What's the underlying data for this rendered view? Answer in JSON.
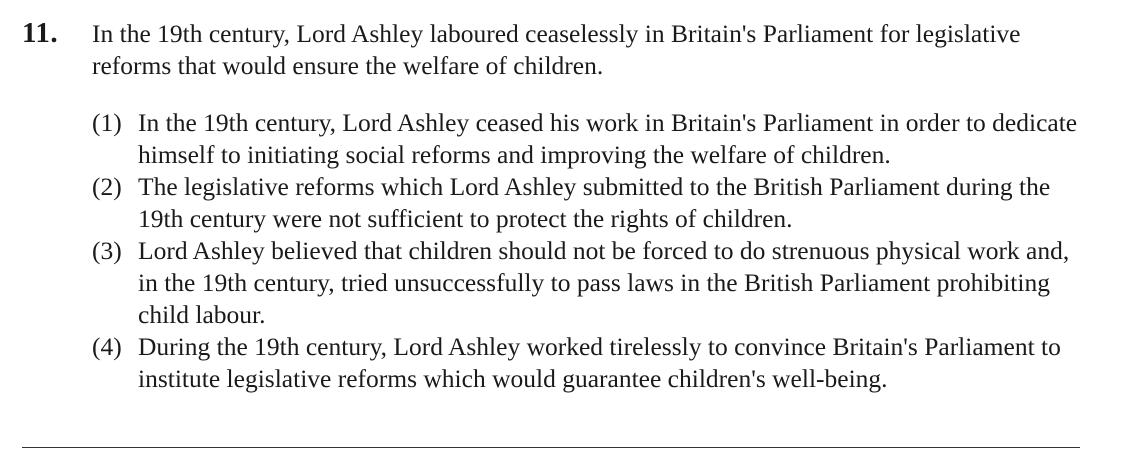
{
  "question": {
    "number": "11.",
    "stem": "In the 19th century, Lord Ashley laboured ceaselessly in Britain's Parliament for legislative reforms that would ensure the welfare of children.",
    "options": [
      {
        "label": "(1)",
        "text": "In the 19th century, Lord Ashley ceased his work in Britain's Parliament in order to dedicate himself to initiating social reforms and improving the welfare of children."
      },
      {
        "label": "(2)",
        "text": "The legislative reforms which Lord Ashley submitted to the British Parliament during the 19th century were not sufficient to protect the rights of children."
      },
      {
        "label": "(3)",
        "text": "Lord Ashley believed that children should not be forced to do strenuous physical work and, in the 19th century, tried unsuccessfully to pass laws in the British Parliament prohibiting child labour."
      },
      {
        "label": "(4)",
        "text": "During the 19th century, Lord Ashley worked tirelessly to convince Britain's Parliament to institute legislative reforms which would guarantee children's well-being."
      }
    ]
  }
}
